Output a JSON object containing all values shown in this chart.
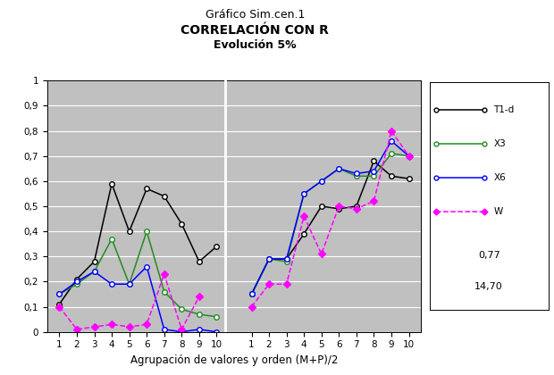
{
  "title_top": "Gráfico Sim.cen.1",
  "title_main": "CORRELACIÓN CON R",
  "title_sub": "Evolución 5%",
  "xlabel": "Agrupación de valores y orden (M+P)/2",
  "x_left": [
    1,
    2,
    3,
    4,
    5,
    6,
    7,
    8,
    9,
    10
  ],
  "x_right": [
    1,
    2,
    3,
    4,
    5,
    6,
    7,
    8,
    9,
    10
  ],
  "T1d_left": [
    0.11,
    0.21,
    0.28,
    0.59,
    0.4,
    0.57,
    0.54,
    0.43,
    0.28,
    0.34
  ],
  "T1d_right": [
    0.15,
    0.29,
    0.29,
    0.39,
    0.5,
    0.49,
    0.5,
    0.68,
    0.62,
    0.61
  ],
  "X3_left": [
    0.15,
    0.19,
    0.24,
    0.37,
    0.19,
    0.4,
    0.16,
    0.09,
    0.07,
    0.06
  ],
  "X3_right": [
    0.15,
    0.29,
    0.28,
    0.55,
    0.6,
    0.65,
    0.62,
    0.62,
    0.71,
    0.7
  ],
  "X6_left": [
    0.15,
    0.2,
    0.24,
    0.19,
    0.19,
    0.26,
    0.01,
    0.0,
    0.01,
    0.0
  ],
  "X6_right": [
    0.15,
    0.29,
    0.29,
    0.55,
    0.6,
    0.65,
    0.63,
    0.64,
    0.76,
    0.7
  ],
  "W_left": [
    0.1,
    0.01,
    0.02,
    0.03,
    0.02,
    0.03,
    0.23,
    0.01,
    0.14,
    null
  ],
  "W_right": [
    0.1,
    0.19,
    0.19,
    0.46,
    0.31,
    0.5,
    0.49,
    0.52,
    0.8,
    0.7
  ],
  "color_T1d": "#000000",
  "color_X3": "#228B22",
  "color_X6": "#0000FF",
  "color_W": "#FF00FF",
  "plot_bg": "#C0C0C0",
  "ylim": [
    0,
    1
  ],
  "yticks": [
    0,
    0.1,
    0.2,
    0.3,
    0.4,
    0.5,
    0.6,
    0.7,
    0.8,
    0.9,
    1
  ],
  "ytick_labels": [
    "0",
    "0,1",
    "0,2",
    "0,3",
    "0,4",
    "0,5",
    "0,6",
    "0,7",
    "0,8",
    "0,9",
    "1"
  ],
  "legend_labels": [
    "T1-d",
    "X3",
    "X6",
    "W"
  ],
  "legend_extra": [
    "0,77",
    "14,70"
  ]
}
